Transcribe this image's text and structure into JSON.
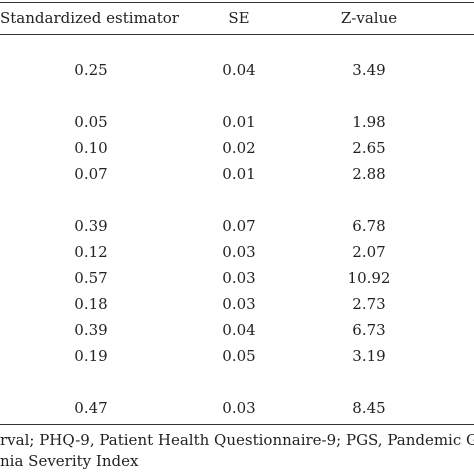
{
  "table": {
    "headers": {
      "estimator": "Standardized estimator",
      "se": "SE",
      "z": "Z-value"
    },
    "rows": [
      {
        "estimator": "0.25",
        "se": "0.04",
        "z": "3.49"
      },
      {
        "estimator": "0.05",
        "se": "0.01",
        "z": "1.98"
      },
      {
        "estimator": "0.10",
        "se": "0.02",
        "z": "2.65"
      },
      {
        "estimator": "0.07",
        "se": "0.01",
        "z": "2.88"
      },
      {
        "estimator": "0.39",
        "se": "0.07",
        "z": "6.78"
      },
      {
        "estimator": "0.12",
        "se": "0.03",
        "z": "2.07"
      },
      {
        "estimator": "0.57",
        "se": "0.03",
        "z": "10.92"
      },
      {
        "estimator": "0.18",
        "se": "0.03",
        "z": "2.73"
      },
      {
        "estimator": "0.39",
        "se": "0.04",
        "z": "6.73"
      },
      {
        "estimator": "0.19",
        "se": "0.05",
        "z": "3.19"
      },
      {
        "estimator": "0.47",
        "se": "0.03",
        "z": "8.45"
      }
    ]
  },
  "footnote": {
    "line1": "rval; PHQ-9, Patient Health Questionnaire-9; PGS, Pandemic G",
    "line2": "nia Severity Index"
  }
}
